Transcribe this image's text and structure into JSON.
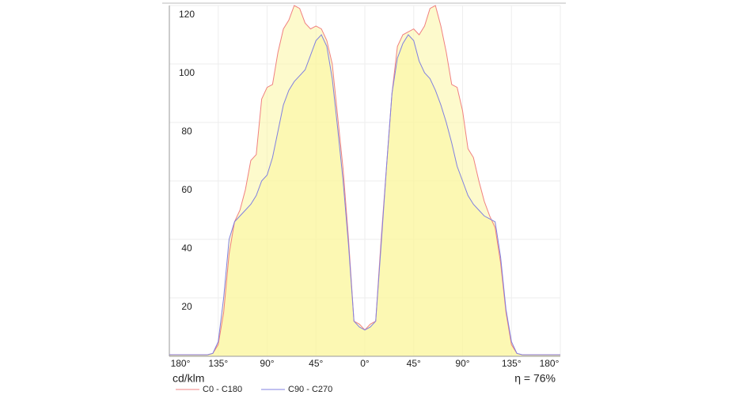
{
  "chart_data": {
    "type": "line",
    "y_label": "cd/klm",
    "annotation": "η = 76%",
    "x": [
      -180,
      -175,
      -170,
      -165,
      -160,
      -155,
      -150,
      -145,
      -140,
      -135,
      -130,
      -125,
      -120,
      -115,
      -110,
      -105,
      -100,
      -95,
      -90,
      -85,
      -80,
      -75,
      -70,
      -65,
      -60,
      -55,
      -50,
      -45,
      -40,
      -35,
      -30,
      -25,
      -20,
      -15,
      -10,
      -5,
      0,
      5,
      10,
      15,
      20,
      25,
      30,
      35,
      40,
      45,
      50,
      55,
      60,
      65,
      70,
      75,
      80,
      85,
      90,
      95,
      100,
      105,
      110,
      115,
      120,
      125,
      130,
      135,
      140,
      145,
      150,
      155,
      160,
      165,
      170,
      175,
      180
    ],
    "series": [
      {
        "name": "C0 - C180",
        "color": "#f08080",
        "values": [
          0.5,
          0.5,
          0.5,
          0.5,
          0.5,
          0.5,
          0.5,
          0.5,
          1,
          4,
          15,
          35,
          46,
          50,
          57,
          67,
          69,
          88,
          92,
          93,
          104,
          112,
          115,
          120,
          119,
          114,
          112,
          113,
          112,
          108,
          100,
          82,
          64,
          40,
          12,
          11,
          9,
          11,
          12,
          40,
          65,
          90,
          106,
          110,
          111,
          112,
          110,
          113,
          119,
          120,
          113,
          104,
          93,
          92,
          84,
          71,
          68,
          60,
          53,
          48,
          44,
          32,
          15,
          4,
          1,
          0.5,
          0.5,
          0.5,
          0.5,
          0.5,
          0.5,
          0.5,
          0.5
        ]
      },
      {
        "name": "C90 - C270",
        "color": "#8080e0",
        "values": [
          0.5,
          0.5,
          0.5,
          0.5,
          0.5,
          0.5,
          0.5,
          0.5,
          1,
          5,
          20,
          40,
          46,
          48,
          50,
          52,
          55,
          60,
          62,
          68,
          77,
          86,
          91,
          94,
          96,
          98,
          103,
          108,
          110,
          106,
          95,
          78,
          60,
          38,
          12,
          10,
          9,
          10,
          12,
          38,
          65,
          90,
          102,
          107,
          110,
          108,
          101,
          97,
          95,
          91,
          86,
          80,
          73,
          65,
          60,
          55,
          52,
          50,
          48,
          47,
          46,
          34,
          16,
          5,
          1,
          0.5,
          0.5,
          0.5,
          0.5,
          0.5,
          0.5,
          0.5,
          0.5
        ]
      }
    ],
    "area_color": "#fbf59a",
    "xlim": [
      -180,
      180
    ],
    "xticks": [
      {
        "value": -180,
        "label": "180°"
      },
      {
        "value": -135,
        "label": "135°"
      },
      {
        "value": -90,
        "label": "90°"
      },
      {
        "value": -45,
        "label": "45°"
      },
      {
        "value": 0,
        "label": "0°"
      },
      {
        "value": 45,
        "label": "45°"
      },
      {
        "value": 90,
        "label": "90°"
      },
      {
        "value": 135,
        "label": "135°"
      },
      {
        "value": 180,
        "label": "180°"
      }
    ],
    "ylim": [
      0,
      120
    ],
    "yticks": [
      20,
      40,
      60,
      80,
      100,
      120
    ],
    "grid": true
  }
}
